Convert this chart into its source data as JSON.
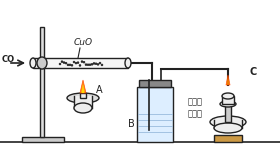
{
  "bg_color": "#ffffff",
  "line_color": "#555555",
  "dark_color": "#222222",
  "label_CO": "CO",
  "label_CuO": "CuO",
  "label_A": "A",
  "label_B": "B",
  "label_C": "C",
  "label_limewater": "澄清的\n石灰水",
  "figsize": [
    2.8,
    1.6
  ],
  "dpi": 100
}
